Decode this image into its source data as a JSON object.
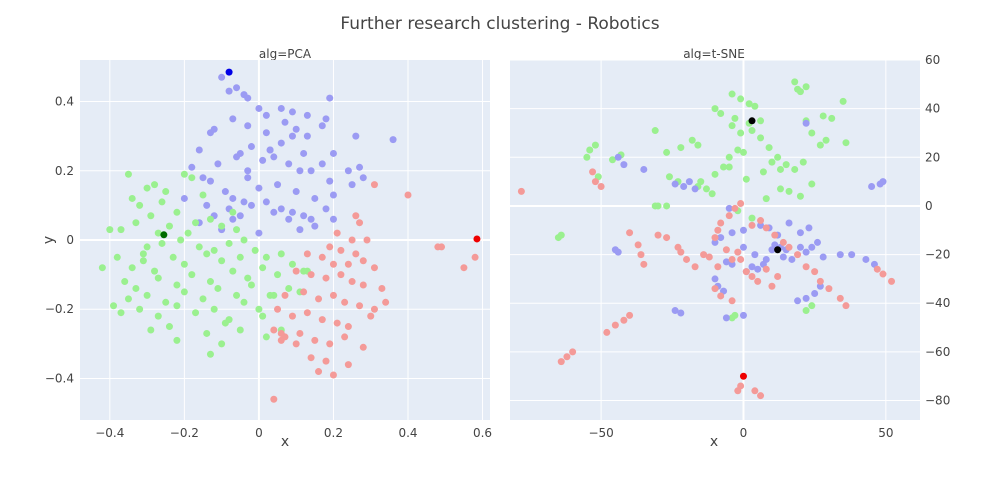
{
  "figure": {
    "title": "Further research clustering - Robotics"
  },
  "colors": {
    "blue": "#9b9bf3",
    "green": "#9af08f",
    "red": "#f49a98",
    "blue_center": "#0000e6",
    "green_center": "#006a00",
    "red_center": "#ee0000",
    "black_center": "#000000"
  },
  "chart_data": [
    {
      "type": "scatter",
      "title": "alg=PCA",
      "xlabel": "x",
      "ylabel": "y",
      "xlim": [
        -0.48,
        0.62
      ],
      "ylim": [
        -0.52,
        0.52
      ],
      "xticks": [
        -0.4,
        -0.2,
        0,
        0.2,
        0.4,
        0.6
      ],
      "xtick_labels": [
        "−0.4",
        "−0.2",
        "0",
        "0.2",
        "0.4",
        "0.6"
      ],
      "yticks": [
        -0.4,
        -0.2,
        0,
        0.2,
        0.4
      ],
      "ytick_labels": [
        "−0.4",
        "−0.2",
        "0",
        "0.2",
        "0.4"
      ],
      "series": [
        {
          "color": "blue",
          "x": [
            -0.1,
            -0.06,
            -0.08,
            -0.04,
            -0.03,
            0.0,
            0.02,
            0.06,
            0.09,
            0.13,
            0.19,
            -0.12,
            -0.07,
            -0.03,
            0.02,
            0.07,
            0.1,
            0.13,
            0.18,
            0.26,
            0.36,
            -0.13,
            -0.06,
            -0.02,
            0.03,
            0.06,
            0.09,
            0.12,
            0.17,
            0.2,
            0.27,
            -0.16,
            -0.11,
            -0.05,
            0.01,
            0.04,
            0.08,
            0.11,
            0.14,
            0.19,
            0.24,
            0.28,
            -0.18,
            -0.13,
            -0.09,
            -0.03,
            0.0,
            0.05,
            0.1,
            0.15,
            0.2,
            0.25,
            -0.2,
            -0.14,
            -0.08,
            -0.04,
            0.02,
            0.06,
            0.12,
            0.18,
            -0.16,
            -0.12,
            -0.07,
            -0.02,
            0.04,
            0.09,
            0.14,
            -0.1,
            -0.05,
            0.0,
            0.08,
            0.11,
            0.15,
            0.2,
            -0.07,
            -0.03,
            0.03,
            0.17,
            -0.15
          ],
          "y": [
            0.47,
            0.44,
            0.43,
            0.42,
            0.41,
            0.38,
            0.36,
            0.38,
            0.37,
            0.36,
            0.41,
            0.32,
            0.35,
            0.33,
            0.31,
            0.34,
            0.32,
            0.3,
            0.35,
            0.3,
            0.29,
            0.31,
            0.24,
            0.27,
            0.26,
            0.28,
            0.3,
            0.25,
            0.22,
            0.25,
            0.21,
            0.26,
            0.22,
            0.25,
            0.23,
            0.24,
            0.22,
            0.2,
            0.2,
            0.17,
            0.2,
            0.18,
            0.21,
            0.17,
            0.14,
            0.18,
            0.15,
            0.16,
            0.14,
            0.12,
            0.13,
            0.16,
            0.12,
            0.1,
            0.09,
            0.11,
            0.11,
            0.09,
            0.07,
            0.09,
            0.05,
            0.07,
            0.06,
            0.1,
            0.08,
            0.08,
            0.06,
            0.03,
            0.07,
            0.02,
            0.06,
            0.03,
            0.04,
            0.06,
            0.12,
            0.2,
            0.26,
            0.33,
            0.18
          ]
        },
        {
          "color": "green",
          "x": [
            -0.35,
            -0.3,
            -0.28,
            -0.34,
            -0.26,
            -0.2,
            -0.18,
            -0.25,
            -0.15,
            -0.32,
            -0.29,
            -0.22,
            -0.17,
            -0.4,
            -0.37,
            -0.33,
            -0.27,
            -0.24,
            -0.19,
            -0.13,
            -0.1,
            -0.06,
            -0.42,
            -0.38,
            -0.3,
            -0.26,
            -0.21,
            -0.16,
            -0.12,
            -0.08,
            -0.04,
            -0.34,
            -0.31,
            -0.28,
            -0.23,
            -0.2,
            -0.14,
            -0.1,
            -0.05,
            -0.01,
            0.02,
            0.06,
            -0.36,
            -0.33,
            -0.27,
            -0.22,
            -0.18,
            -0.13,
            -0.07,
            -0.03,
            0.01,
            0.05,
            0.09,
            0.13,
            -0.39,
            -0.35,
            -0.3,
            -0.25,
            -0.2,
            -0.15,
            -0.11,
            -0.06,
            -0.02,
            0.03,
            0.08,
            0.11,
            -0.37,
            -0.32,
            -0.27,
            -0.22,
            -0.17,
            -0.12,
            -0.08,
            -0.04,
            0.0,
            0.04,
            -0.29,
            -0.24,
            -0.14,
            -0.09,
            -0.05,
            0.01,
            0.06,
            -0.22,
            -0.13,
            -0.1,
            0.02,
            0.12,
            -0.07,
            -0.31
          ],
          "y": [
            0.19,
            0.15,
            0.16,
            0.12,
            0.11,
            0.19,
            0.18,
            0.14,
            0.13,
            0.1,
            0.07,
            0.08,
            0.05,
            0.03,
            0.03,
            0.05,
            0.02,
            0.04,
            0.02,
            0.06,
            0.04,
            0.03,
            -0.08,
            -0.05,
            -0.02,
            -0.01,
            0.0,
            -0.02,
            -0.03,
            -0.01,
            0.0,
            -0.08,
            -0.06,
            -0.09,
            -0.05,
            -0.07,
            -0.04,
            -0.06,
            -0.05,
            -0.03,
            -0.05,
            -0.04,
            -0.12,
            -0.14,
            -0.11,
            -0.13,
            -0.1,
            -0.12,
            -0.09,
            -0.11,
            -0.08,
            -0.1,
            -0.07,
            -0.09,
            -0.19,
            -0.17,
            -0.16,
            -0.18,
            -0.15,
            -0.17,
            -0.14,
            -0.16,
            -0.13,
            -0.16,
            -0.14,
            -0.15,
            -0.21,
            -0.2,
            -0.22,
            -0.19,
            -0.21,
            -0.2,
            -0.23,
            -0.18,
            -0.2,
            -0.16,
            -0.26,
            -0.25,
            -0.27,
            -0.24,
            -0.26,
            -0.22,
            -0.26,
            -0.29,
            -0.33,
            -0.3,
            -0.28,
            -0.09,
            0.08,
            -0.04
          ]
        },
        {
          "color": "red",
          "x": [
            0.31,
            0.4,
            0.26,
            0.27,
            0.21,
            0.25,
            0.29,
            0.19,
            0.22,
            0.26,
            0.13,
            0.17,
            0.2,
            0.24,
            0.28,
            0.31,
            0.1,
            0.14,
            0.18,
            0.22,
            0.25,
            0.28,
            0.33,
            0.07,
            0.12,
            0.16,
            0.2,
            0.23,
            0.27,
            0.31,
            0.34,
            0.05,
            0.09,
            0.13,
            0.17,
            0.21,
            0.24,
            0.3,
            0.04,
            0.07,
            0.11,
            0.15,
            0.19,
            0.23,
            0.28,
            0.06,
            0.1,
            0.14,
            0.18,
            0.24,
            0.16,
            0.2,
            0.06,
            0.04,
            0.48,
            0.49,
            0.55,
            0.58
          ],
          "y": [
            0.16,
            0.13,
            0.07,
            0.05,
            0.02,
            0.0,
            0.0,
            -0.02,
            -0.03,
            -0.04,
            -0.04,
            -0.05,
            -0.07,
            -0.07,
            -0.06,
            -0.08,
            -0.09,
            -0.1,
            -0.11,
            -0.1,
            -0.12,
            -0.13,
            -0.14,
            -0.16,
            -0.15,
            -0.17,
            -0.16,
            -0.18,
            -0.19,
            -0.2,
            -0.18,
            -0.2,
            -0.22,
            -0.21,
            -0.23,
            -0.24,
            -0.25,
            -0.22,
            -0.26,
            -0.28,
            -0.27,
            -0.29,
            -0.3,
            -0.28,
            -0.31,
            -0.29,
            -0.3,
            -0.34,
            -0.35,
            -0.36,
            -0.38,
            -0.39,
            -0.27,
            -0.46,
            -0.02,
            -0.02,
            -0.08,
            -0.05
          ]
        },
        {
          "color": "blue_center",
          "x": [
            -0.08
          ],
          "y": [
            0.485
          ]
        },
        {
          "color": "green_center",
          "x": [
            -0.255
          ],
          "y": [
            0.015
          ]
        },
        {
          "color": "red_center",
          "x": [
            0.585
          ],
          "y": [
            0.003
          ]
        }
      ]
    },
    {
      "type": "scatter",
      "title": "alg=t-SNE",
      "xlabel": "x",
      "ylabel": "",
      "xlim": [
        -82,
        62
      ],
      "ylim": [
        -88,
        60
      ],
      "xticks": [
        -50,
        0,
        50
      ],
      "xtick_labels": [
        "−50",
        "0",
        "50"
      ],
      "yticks": [
        -80,
        -60,
        -40,
        -20,
        0,
        20,
        40,
        60
      ],
      "ytick_labels": [
        "−80",
        "−60",
        "−40",
        "−20",
        "0",
        "20",
        "40",
        "60"
      ],
      "series": [
        {
          "color": "green",
          "x": [
            -54,
            -52,
            -55,
            -51,
            -46,
            -43,
            -31,
            -22,
            -27,
            -18,
            -16,
            -15,
            -10,
            -7,
            -5,
            -2,
            0,
            -3,
            2,
            4,
            6,
            -1,
            -4,
            2,
            18,
            19,
            20,
            22,
            24,
            22,
            28,
            31,
            35,
            36,
            -10,
            -8,
            -4,
            -1,
            3,
            6,
            9,
            12,
            15,
            18,
            21,
            -16,
            -13,
            -11,
            -27,
            -30,
            -31,
            -23,
            -26,
            -2,
            3,
            8,
            13,
            16,
            20,
            24,
            -64,
            -65,
            -4,
            -3,
            22,
            24,
            27,
            29,
            -5,
            1,
            7,
            10,
            13
          ],
          "y": [
            23,
            25,
            20,
            12,
            19,
            21,
            31,
            24,
            22,
            27,
            25,
            10,
            13,
            16,
            20,
            23,
            22,
            36,
            34,
            41,
            35,
            44,
            46,
            42,
            51,
            48,
            47,
            49,
            30,
            35,
            37,
            36,
            43,
            26,
            40,
            38,
            33,
            30,
            31,
            28,
            24,
            20,
            17,
            15,
            18,
            8,
            7,
            5,
            0,
            0,
            0,
            10,
            12,
            -2,
            -5,
            3,
            7,
            6,
            4,
            9,
            -12,
            -13,
            -46,
            -45,
            -43,
            -41,
            25,
            27,
            16,
            11,
            14,
            18,
            15
          ]
        },
        {
          "color": "blue",
          "x": [
            -44,
            -42,
            -35,
            -24,
            -21,
            -19,
            -17,
            -6,
            -4,
            0,
            4,
            7,
            10,
            14,
            17,
            20,
            22,
            24,
            26,
            28,
            34,
            38,
            43,
            46,
            48,
            -45,
            -44,
            -24,
            -22,
            -10,
            -9,
            -7,
            -6,
            0,
            1,
            3,
            5,
            8,
            11,
            13,
            15,
            19,
            22,
            25,
            27,
            -10,
            -8,
            -4,
            0,
            6,
            9,
            12,
            16,
            20,
            23,
            45,
            49,
            -5,
            22
          ],
          "y": [
            20,
            17,
            15,
            9,
            8,
            10,
            7,
            -23,
            -24,
            -17,
            -20,
            -24,
            -18,
            -21,
            -22,
            -17,
            -19,
            -17,
            -15,
            -21,
            -20,
            -20,
            -22,
            -24,
            9,
            -18,
            -19,
            -43,
            -44,
            -30,
            -33,
            -35,
            -46,
            -45,
            -27,
            -25,
            -26,
            -22,
            -16,
            -17,
            -18,
            -39,
            -38,
            -36,
            -33,
            -15,
            -13,
            -11,
            -10,
            -8,
            -9,
            -12,
            -7,
            -11,
            -9,
            8,
            10,
            -1,
            34
          ]
        },
        {
          "color": "red",
          "x": [
            -78,
            -53,
            -52,
            -50,
            -40,
            -37,
            -36,
            -35,
            -30,
            -27,
            -23,
            -22,
            -20,
            -17,
            -14,
            -12,
            -9,
            -6,
            -4,
            -2,
            -1,
            1,
            3,
            5,
            8,
            10,
            12,
            -10,
            -9,
            -8,
            -5,
            -3,
            -1,
            3,
            6,
            8,
            11,
            14,
            16,
            19,
            22,
            25,
            27,
            30,
            34,
            36,
            47,
            49,
            52,
            -10,
            -8,
            -4,
            -1,
            4,
            6,
            -60,
            -62,
            -64,
            -40,
            -42,
            -45,
            -48,
            -2
          ],
          "y": [
            6,
            14,
            10,
            8,
            -11,
            -16,
            -20,
            -24,
            -12,
            -13,
            -17,
            -19,
            -22,
            -25,
            -20,
            -21,
            -25,
            -18,
            -22,
            -19,
            -22,
            -27,
            -29,
            -31,
            -26,
            -33,
            -29,
            -13,
            -10,
            -7,
            -4,
            -1,
            1,
            -8,
            -6,
            -9,
            -12,
            -15,
            -17,
            -20,
            -25,
            -27,
            -31,
            -34,
            -38,
            -41,
            -26,
            -28,
            -31,
            -34,
            -37,
            -39,
            -74,
            -76,
            -78,
            -60,
            -62,
            -64,
            -45,
            -47,
            -49,
            -52,
            -76
          ]
        },
        {
          "color": "black_center",
          "x": [
            3
          ],
          "y": [
            35
          ]
        },
        {
          "color": "black_center",
          "x": [
            12
          ],
          "y": [
            -18
          ]
        },
        {
          "color": "red_center",
          "x": [
            0
          ],
          "y": [
            -70
          ]
        }
      ]
    }
  ]
}
